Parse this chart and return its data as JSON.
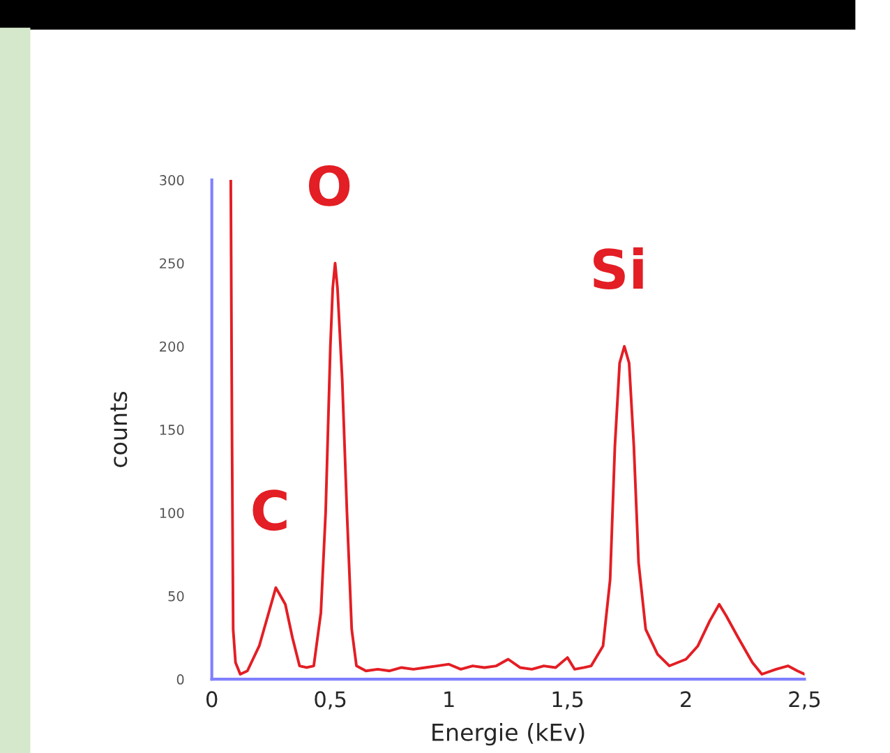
{
  "chart_data": {
    "type": "line",
    "xlabel": "Energie (kEv)",
    "ylabel": "counts",
    "xlim": [
      0,
      2.5
    ],
    "ylim": [
      0,
      300
    ],
    "xticks": [
      0,
      {
        "value": 0.5,
        "label": "0,5"
      },
      1,
      {
        "value": 1.5,
        "label": "1,5"
      },
      2,
      {
        "value": 2.5,
        "label": "2,5"
      }
    ],
    "yticks": [
      0,
      50,
      100,
      150,
      200,
      250,
      300
    ],
    "grid": false,
    "legend": false,
    "marker": "none",
    "line_style": "solid",
    "annotations": [
      {
        "text": "C",
        "x": 0.27,
        "y": 55
      },
      {
        "text": "O",
        "x": 0.52,
        "y": 250
      },
      {
        "text": "Si",
        "x": 1.74,
        "y": 200
      }
    ],
    "series": [
      {
        "color": "#e31e24",
        "x": [
          0.08,
          0.085,
          0.09,
          0.1,
          0.12,
          0.15,
          0.2,
          0.24,
          0.27,
          0.29,
          0.31,
          0.34,
          0.37,
          0.4,
          0.43,
          0.46,
          0.48,
          0.5,
          0.51,
          0.52,
          0.53,
          0.55,
          0.57,
          0.59,
          0.61,
          0.65,
          0.7,
          0.75,
          0.8,
          0.85,
          0.9,
          0.95,
          1.0,
          1.05,
          1.1,
          1.15,
          1.2,
          1.25,
          1.3,
          1.35,
          1.4,
          1.45,
          1.5,
          1.53,
          1.57,
          1.6,
          1.65,
          1.68,
          1.7,
          1.72,
          1.74,
          1.76,
          1.78,
          1.8,
          1.83,
          1.88,
          1.93,
          2.0,
          2.05,
          2.1,
          2.14,
          2.17,
          2.22,
          2.28,
          2.32,
          2.38,
          2.43,
          2.47,
          2.5
        ],
        "values": [
          300,
          150,
          30,
          10,
          3,
          5,
          20,
          40,
          55,
          50,
          45,
          25,
          8,
          7,
          8,
          40,
          100,
          200,
          235,
          250,
          235,
          180,
          100,
          30,
          8,
          5,
          6,
          5,
          7,
          6,
          7,
          8,
          9,
          6,
          8,
          7,
          8,
          12,
          7,
          6,
          8,
          7,
          13,
          6,
          7,
          8,
          20,
          60,
          140,
          190,
          200,
          190,
          140,
          70,
          30,
          15,
          8,
          12,
          20,
          35,
          45,
          38,
          25,
          10,
          3,
          6,
          8,
          5,
          3
        ]
      }
    ]
  }
}
